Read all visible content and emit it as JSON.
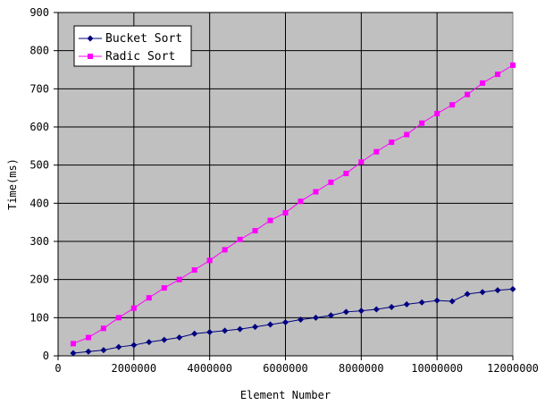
{
  "chart_data": {
    "type": "line",
    "xlabel": "Element Number",
    "ylabel": "Time(ms)",
    "xlim": [
      0,
      12000000
    ],
    "ylim": [
      0,
      900
    ],
    "xticks": [
      0,
      2000000,
      4000000,
      6000000,
      8000000,
      10000000,
      12000000
    ],
    "xtick_labels": [
      "0",
      "2000000",
      "4000000",
      "6000000",
      "8000000",
      "10000000",
      "12000000"
    ],
    "yticks": [
      0,
      100,
      200,
      300,
      400,
      500,
      600,
      700,
      800,
      900
    ],
    "ytick_labels": [
      "0",
      "100",
      "200",
      "300",
      "400",
      "500",
      "600",
      "700",
      "800",
      "900"
    ],
    "grid": true,
    "plot_background": "#c0c0c0",
    "legend_position": "top-left",
    "x": [
      400000,
      800000,
      1200000,
      1600000,
      2000000,
      2400000,
      2800000,
      3200000,
      3600000,
      4000000,
      4400000,
      4800000,
      5200000,
      5600000,
      6000000,
      6400000,
      6800000,
      7200000,
      7600000,
      8000000,
      8400000,
      8800000,
      9200000,
      9600000,
      10000000,
      10400000,
      10800000,
      11200000,
      11600000,
      12000000
    ],
    "series": [
      {
        "name": "Bucket Sort",
        "color": "#000080",
        "marker": "diamond",
        "values": [
          7,
          11,
          15,
          23,
          28,
          36,
          42,
          48,
          58,
          62,
          66,
          70,
          76,
          82,
          88,
          95,
          100,
          106,
          115,
          118,
          122,
          128,
          135,
          140,
          145,
          143,
          162,
          167,
          172,
          175
        ]
      },
      {
        "name": "Radic Sort",
        "color": "#ff00ff",
        "marker": "square",
        "values": [
          32,
          48,
          72,
          100,
          125,
          152,
          178,
          200,
          225,
          250,
          278,
          305,
          328,
          355,
          375,
          405,
          430,
          455,
          478,
          508,
          535,
          560,
          580,
          610,
          635,
          658,
          685,
          715,
          738,
          762
        ]
      }
    ]
  }
}
